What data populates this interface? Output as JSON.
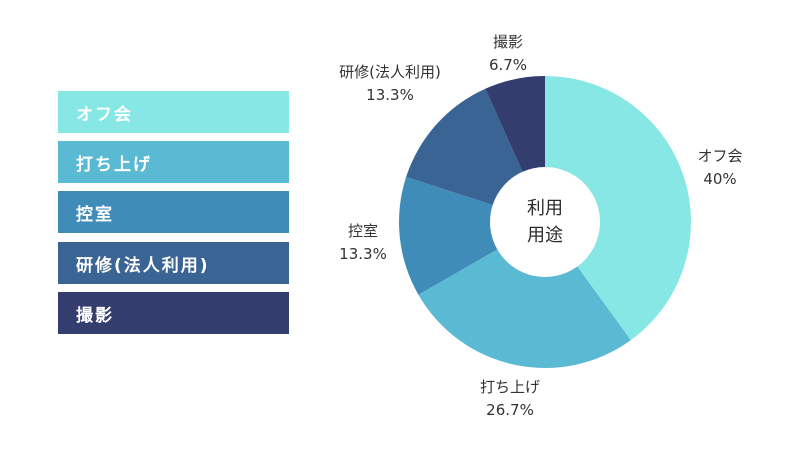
{
  "chart_data": {
    "type": "pie",
    "subtype": "donut",
    "title": "",
    "center_label": [
      "利用",
      "用途"
    ],
    "categories": [
      "オフ会",
      "打ち上げ",
      "控室",
      "研修(法人利用)",
      "撮影"
    ],
    "values": [
      40,
      26.7,
      13.3,
      13.3,
      6.7
    ],
    "value_labels": [
      "40%",
      "26.7%",
      "13.3%",
      "13.3%",
      "6.7%"
    ],
    "colors": [
      "#86E7E5",
      "#5BBAD3",
      "#3F8CB9",
      "#3A6494",
      "#333D6E"
    ],
    "legend_position": "left"
  },
  "legend": {
    "items": [
      {
        "label": "オフ会",
        "color": "#86E7E5"
      },
      {
        "label": "打ち上げ",
        "color": "#5BBAD3"
      },
      {
        "label": "控室",
        "color": "#3F8CB9"
      },
      {
        "label": "研修(法人利用)",
        "color": "#3A6494"
      },
      {
        "label": "撮影",
        "color": "#333D6E"
      }
    ]
  },
  "labels": [
    {
      "name": "オフ会",
      "pct": "40%"
    },
    {
      "name": "打ち上げ",
      "pct": "26.7%"
    },
    {
      "name": "控室",
      "pct": "13.3%"
    },
    {
      "name": "研修(法人利用)",
      "pct": "13.3%"
    },
    {
      "name": "撮影",
      "pct": "6.7%"
    }
  ],
  "center": {
    "line1": "利用",
    "line2": "用途"
  }
}
